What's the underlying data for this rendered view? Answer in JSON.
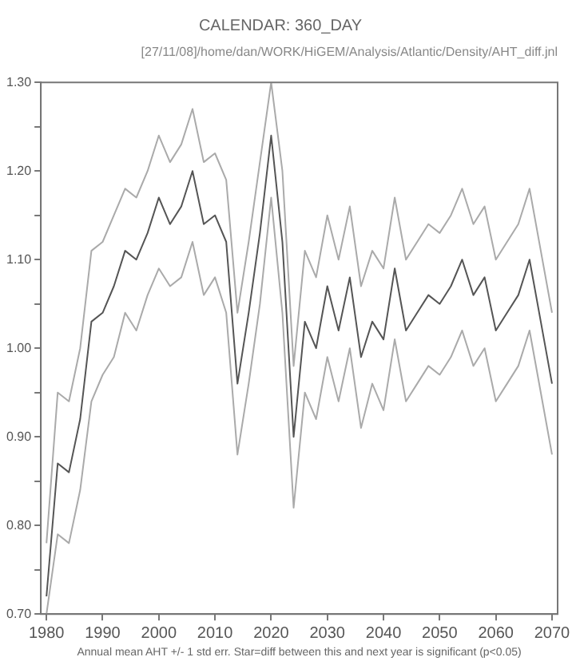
{
  "chart_data": {
    "type": "line",
    "title": "CALENDAR: 360_DAY",
    "subtitle": "[27/11/08]/home/dan/WORK/HiGEM/Analysis/Atlantic/Density/AHT_diff.jnl",
    "xlabel": "Annual mean AHT +/- 1 std err. Star=diff between this and next year is significant (p<0.05)",
    "x": [
      1980,
      1982,
      1984,
      1986,
      1988,
      1990,
      1992,
      1994,
      1996,
      1998,
      2000,
      2002,
      2004,
      2006,
      2008,
      2010,
      2012,
      2014,
      2016,
      2018,
      2020,
      2022,
      2024,
      2026,
      2028,
      2030,
      2032,
      2034,
      2036,
      2038,
      2040,
      2042,
      2044,
      2046,
      2048,
      2050,
      2052,
      2054,
      2056,
      2058,
      2060,
      2062,
      2064,
      2066,
      2068,
      2070
    ],
    "series": [
      {
        "color": "#aaaaaa",
        "values": [
          0.7,
          0.79,
          0.78,
          0.84,
          0.94,
          0.97,
          0.99,
          1.04,
          1.02,
          1.06,
          1.09,
          1.07,
          1.08,
          1.12,
          1.06,
          1.08,
          1.04,
          0.88,
          0.96,
          1.05,
          1.17,
          1.04,
          0.82,
          0.95,
          0.92,
          0.99,
          0.94,
          1.0,
          0.91,
          0.96,
          0.93,
          1.01,
          0.94,
          0.96,
          0.98,
          0.97,
          0.99,
          1.02,
          0.98,
          1.0,
          0.94,
          0.96,
          0.98,
          1.02,
          0.95,
          0.88
        ]
      },
      {
        "color": "#555555",
        "values": [
          0.72,
          0.87,
          0.86,
          0.92,
          1.03,
          1.04,
          1.07,
          1.11,
          1.1,
          1.13,
          1.17,
          1.14,
          1.16,
          1.2,
          1.14,
          1.15,
          1.12,
          0.96,
          1.04,
          1.13,
          1.24,
          1.12,
          0.9,
          1.03,
          1.0,
          1.07,
          1.02,
          1.08,
          0.99,
          1.03,
          1.01,
          1.09,
          1.02,
          1.04,
          1.06,
          1.05,
          1.07,
          1.1,
          1.06,
          1.08,
          1.02,
          1.04,
          1.06,
          1.1,
          1.03,
          0.96
        ]
      },
      {
        "color": "#aaaaaa",
        "values": [
          0.78,
          0.95,
          0.94,
          1.0,
          1.11,
          1.12,
          1.15,
          1.18,
          1.17,
          1.2,
          1.24,
          1.21,
          1.23,
          1.27,
          1.21,
          1.22,
          1.19,
          1.04,
          1.12,
          1.21,
          1.3,
          1.2,
          0.98,
          1.11,
          1.08,
          1.15,
          1.1,
          1.16,
          1.07,
          1.11,
          1.09,
          1.17,
          1.1,
          1.12,
          1.14,
          1.13,
          1.15,
          1.18,
          1.14,
          1.16,
          1.1,
          1.12,
          1.14,
          1.18,
          1.11,
          1.04
        ]
      }
    ],
    "xlim": [
      1979,
      2071
    ],
    "xticks": [
      1980,
      1990,
      2000,
      2010,
      2020,
      2030,
      2040,
      2050,
      2060,
      2070
    ],
    "ylim": [
      0.7,
      1.3
    ],
    "yticks": [
      {
        "value": 0.7,
        "label": "0.70"
      },
      {
        "value": 0.75,
        "label": null
      },
      {
        "value": 0.8,
        "label": "0.80"
      },
      {
        "value": 0.85,
        "label": null
      },
      {
        "value": 0.9,
        "label": "0.90"
      },
      {
        "value": 0.95,
        "label": null
      },
      {
        "value": 1.0,
        "label": "1.00"
      },
      {
        "value": 1.05,
        "label": null
      },
      {
        "value": 1.1,
        "label": "1.10"
      },
      {
        "value": 1.15,
        "label": null
      },
      {
        "value": 1.2,
        "label": "1.20"
      },
      {
        "value": 1.25,
        "label": null
      },
      {
        "value": 1.3,
        "label": "1.30"
      }
    ],
    "grid": false,
    "legend": false,
    "marker": "none",
    "line_style": "solid"
  }
}
